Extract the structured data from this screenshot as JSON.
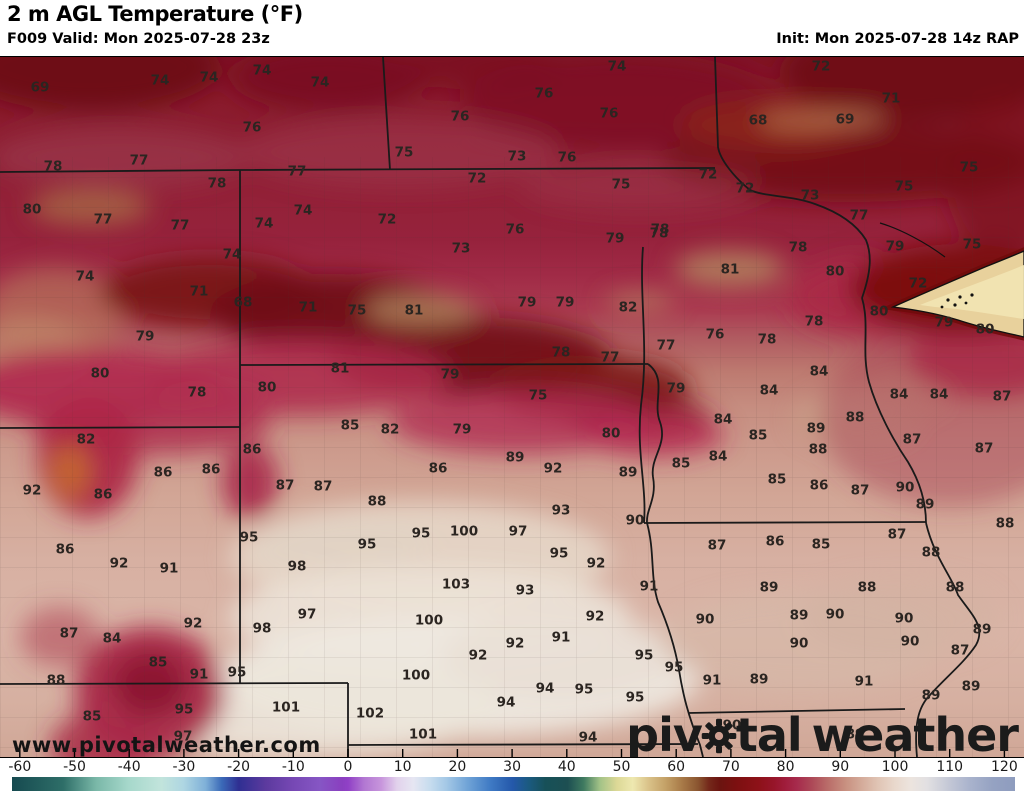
{
  "header": {
    "title": "2 m AGL Temperature (°F)",
    "forecast_info": "F009 Valid: Mon 2025-07-28 23z",
    "init_info": "Init: Mon 2025-07-28 14z RAP"
  },
  "watermark": "www.pivotalweather.com",
  "logo": {
    "prefix": "piv",
    "middle": "tal",
    "suffix": "weather"
  },
  "colorbar": {
    "unit": "°F",
    "tick_values": [
      -60,
      -50,
      -40,
      -30,
      -20,
      -10,
      0,
      10,
      20,
      30,
      40,
      50,
      60,
      70,
      80,
      90,
      100,
      110,
      120
    ],
    "gradient_stops": [
      [
        0,
        "#164a50"
      ],
      [
        5.1,
        "#2e6e68"
      ],
      [
        8.4,
        "#7ab8a8"
      ],
      [
        11.6,
        "#a6d8cb"
      ],
      [
        14.9,
        "#c2e4dc"
      ],
      [
        17.1,
        "#aed6e2"
      ],
      [
        19.3,
        "#7fb0d8"
      ],
      [
        20.9,
        "#3b6ab8"
      ],
      [
        22.6,
        "#2f2f92"
      ],
      [
        25.3,
        "#5c3a9e"
      ],
      [
        28,
        "#7648b4"
      ],
      [
        30.7,
        "#8656c4"
      ],
      [
        32.9,
        "#8a3fc0"
      ],
      [
        33.5,
        "#9040c6"
      ],
      [
        35.1,
        "#b277d2"
      ],
      [
        36.8,
        "#c795dc"
      ],
      [
        38.4,
        "#e2d2ec"
      ],
      [
        40,
        "#e6e6f2"
      ],
      [
        41.7,
        "#c6dcee"
      ],
      [
        43.3,
        "#a4c8e6"
      ],
      [
        45.5,
        "#6ea2d6"
      ],
      [
        47.7,
        "#3f7ac4"
      ],
      [
        49.9,
        "#2458aa"
      ],
      [
        51.5,
        "#1b5a80"
      ],
      [
        53.2,
        "#175058"
      ],
      [
        55.4,
        "#1d4f52"
      ],
      [
        57,
        "#3f7a60"
      ],
      [
        58.6,
        "#a2c287"
      ],
      [
        60.3,
        "#dcd896"
      ],
      [
        61.9,
        "#eee8b0"
      ],
      [
        63.5,
        "#d9c188"
      ],
      [
        65.2,
        "#c3a066"
      ],
      [
        66.8,
        "#a87a48"
      ],
      [
        68.4,
        "#8a5530"
      ],
      [
        69.5,
        "#74281a"
      ],
      [
        70.6,
        "#6b1410"
      ],
      [
        72.2,
        "#7c1010"
      ],
      [
        74.4,
        "#8d1118"
      ],
      [
        76,
        "#97152a"
      ],
      [
        77.1,
        "#a01d3c"
      ],
      [
        78.2,
        "#a62a4c"
      ],
      [
        79.8,
        "#ad4a58"
      ],
      [
        81.4,
        "#ba6e6a"
      ],
      [
        83.1,
        "#c89080"
      ],
      [
        84.7,
        "#d4ab9a"
      ],
      [
        86.3,
        "#e0c4b4"
      ],
      [
        88,
        "#e9d8cc"
      ],
      [
        89.6,
        "#ece4de"
      ],
      [
        91.2,
        "#e2e0e2"
      ],
      [
        93.4,
        "#c4c8d6"
      ],
      [
        95.6,
        "#a8b2cc"
      ],
      [
        97.8,
        "#95a2c2"
      ],
      [
        100,
        "#8e9cbe"
      ]
    ]
  },
  "map": {
    "region": "Upper Midwest (MT, ND, SD, MN, WY, NE, IA, WI, CO, KS, MO)",
    "temperature_labels": [
      [
        69,
        40,
        31
      ],
      [
        74,
        160,
        24
      ],
      [
        74,
        209,
        21
      ],
      [
        74,
        262,
        14
      ],
      [
        74,
        320,
        26
      ],
      [
        74,
        617,
        10
      ],
      [
        72,
        821,
        10
      ],
      [
        76,
        544,
        37
      ],
      [
        76,
        609,
        57
      ],
      [
        76,
        252,
        71
      ],
      [
        76,
        460,
        60
      ],
      [
        71,
        891,
        42
      ],
      [
        68,
        758,
        64
      ],
      [
        69,
        845,
        63
      ],
      [
        73,
        517,
        100
      ],
      [
        76,
        567,
        101
      ],
      [
        75,
        404,
        96
      ],
      [
        77,
        139,
        104
      ],
      [
        78,
        53,
        110
      ],
      [
        77,
        297,
        115
      ],
      [
        75,
        969,
        111
      ],
      [
        72,
        477,
        122
      ],
      [
        75,
        904,
        130
      ],
      [
        72,
        708,
        118
      ],
      [
        72,
        745,
        132
      ],
      [
        75,
        621,
        128
      ],
      [
        73,
        810,
        139
      ],
      [
        77,
        859,
        159
      ],
      [
        78,
        217,
        127
      ],
      [
        80,
        32,
        153
      ],
      [
        77,
        103,
        163
      ],
      [
        77,
        180,
        169
      ],
      [
        74,
        303,
        154
      ],
      [
        74,
        264,
        167
      ],
      [
        72,
        387,
        163
      ],
      [
        78,
        660,
        173
      ],
      [
        76,
        515,
        173
      ],
      [
        74,
        232,
        198
      ],
      [
        73,
        461,
        192
      ],
      [
        74,
        85,
        220
      ],
      [
        71,
        199,
        235
      ],
      [
        68,
        243,
        246
      ],
      [
        71,
        308,
        251
      ],
      [
        75,
        357,
        254
      ],
      [
        81,
        414,
        254
      ],
      [
        79,
        145,
        280
      ],
      [
        79,
        615,
        182
      ],
      [
        78,
        659,
        177
      ],
      [
        78,
        798,
        191
      ],
      [
        79,
        895,
        190
      ],
      [
        75,
        972,
        188
      ],
      [
        81,
        730,
        213
      ],
      [
        80,
        835,
        215
      ],
      [
        72,
        918,
        227
      ],
      [
        79,
        527,
        246
      ],
      [
        79,
        565,
        246
      ],
      [
        82,
        628,
        251
      ],
      [
        80,
        879,
        255
      ],
      [
        79,
        944,
        266
      ],
      [
        80,
        985,
        273
      ],
      [
        78,
        814,
        265
      ],
      [
        76,
        715,
        278
      ],
      [
        78,
        767,
        283
      ],
      [
        77,
        666,
        289
      ],
      [
        78,
        561,
        296
      ],
      [
        77,
        610,
        301
      ],
      [
        80,
        100,
        317
      ],
      [
        81,
        340,
        312
      ],
      [
        79,
        450,
        318
      ],
      [
        78,
        197,
        336
      ],
      [
        80,
        267,
        331
      ],
      [
        84,
        819,
        315
      ],
      [
        79,
        676,
        332
      ],
      [
        84,
        769,
        334
      ],
      [
        75,
        538,
        339
      ],
      [
        84,
        899,
        338
      ],
      [
        84,
        939,
        338
      ],
      [
        87,
        1002,
        340
      ],
      [
        82,
        86,
        383
      ],
      [
        85,
        350,
        369
      ],
      [
        82,
        390,
        373
      ],
      [
        79,
        462,
        373
      ],
      [
        86,
        163,
        416
      ],
      [
        86,
        211,
        413
      ],
      [
        86,
        252,
        393
      ],
      [
        92,
        32,
        434
      ],
      [
        86,
        103,
        438
      ],
      [
        86,
        438,
        412
      ],
      [
        87,
        285,
        429
      ],
      [
        87,
        323,
        430
      ],
      [
        88,
        377,
        445
      ],
      [
        80,
        611,
        377
      ],
      [
        89,
        515,
        401
      ],
      [
        92,
        553,
        412
      ],
      [
        89,
        628,
        416
      ],
      [
        84,
        723,
        363
      ],
      [
        85,
        758,
        379
      ],
      [
        89,
        816,
        372
      ],
      [
        88,
        855,
        361
      ],
      [
        88,
        818,
        393
      ],
      [
        85,
        681,
        407
      ],
      [
        84,
        718,
        400
      ],
      [
        87,
        912,
        383
      ],
      [
        87,
        984,
        392
      ],
      [
        85,
        777,
        423
      ],
      [
        86,
        819,
        429
      ],
      [
        87,
        860,
        434
      ],
      [
        90,
        905,
        431
      ],
      [
        89,
        925,
        448
      ],
      [
        88,
        1005,
        467
      ],
      [
        95,
        249,
        481
      ],
      [
        95,
        367,
        488
      ],
      [
        95,
        421,
        477
      ],
      [
        100,
        464,
        475
      ],
      [
        93,
        561,
        454
      ],
      [
        90,
        635,
        464
      ],
      [
        97,
        518,
        475
      ],
      [
        86,
        65,
        493
      ],
      [
        91,
        169,
        512
      ],
      [
        92,
        119,
        507
      ],
      [
        95,
        559,
        497
      ],
      [
        92,
        596,
        507
      ],
      [
        87,
        717,
        489
      ],
      [
        86,
        775,
        485
      ],
      [
        85,
        821,
        488
      ],
      [
        87,
        897,
        478
      ],
      [
        88,
        931,
        496
      ],
      [
        98,
        297,
        510
      ],
      [
        103,
        456,
        528
      ],
      [
        93,
        525,
        534
      ],
      [
        91,
        649,
        530
      ],
      [
        89,
        769,
        531
      ],
      [
        88,
        867,
        531
      ],
      [
        88,
        955,
        531
      ],
      [
        87,
        69,
        577
      ],
      [
        84,
        112,
        582
      ],
      [
        92,
        193,
        567
      ],
      [
        98,
        262,
        572
      ],
      [
        97,
        307,
        558
      ],
      [
        100,
        429,
        564
      ],
      [
        92,
        595,
        560
      ],
      [
        91,
        561,
        581
      ],
      [
        92,
        515,
        587
      ],
      [
        90,
        705,
        563
      ],
      [
        89,
        799,
        559
      ],
      [
        90,
        835,
        558
      ],
      [
        90,
        904,
        562
      ],
      [
        89,
        982,
        573
      ],
      [
        92,
        478,
        599
      ],
      [
        85,
        158,
        606
      ],
      [
        91,
        199,
        618
      ],
      [
        95,
        237,
        616
      ],
      [
        100,
        416,
        619
      ],
      [
        90,
        799,
        587
      ],
      [
        90,
        910,
        585
      ],
      [
        87,
        960,
        594
      ],
      [
        95,
        644,
        599
      ],
      [
        95,
        674,
        611
      ],
      [
        88,
        56,
        624
      ],
      [
        94,
        545,
        632
      ],
      [
        95,
        584,
        633
      ],
      [
        95,
        635,
        641
      ],
      [
        91,
        712,
        624
      ],
      [
        89,
        759,
        623
      ],
      [
        91,
        864,
        625
      ],
      [
        89,
        931,
        639
      ],
      [
        89,
        971,
        630
      ],
      [
        85,
        92,
        660
      ],
      [
        95,
        184,
        653
      ],
      [
        101,
        286,
        651
      ],
      [
        102,
        370,
        657
      ],
      [
        94,
        506,
        646
      ],
      [
        97,
        183,
        680
      ],
      [
        101,
        423,
        678
      ],
      [
        94,
        588,
        681
      ],
      [
        90,
        732,
        669
      ],
      [
        89,
        855,
        678
      ]
    ]
  }
}
